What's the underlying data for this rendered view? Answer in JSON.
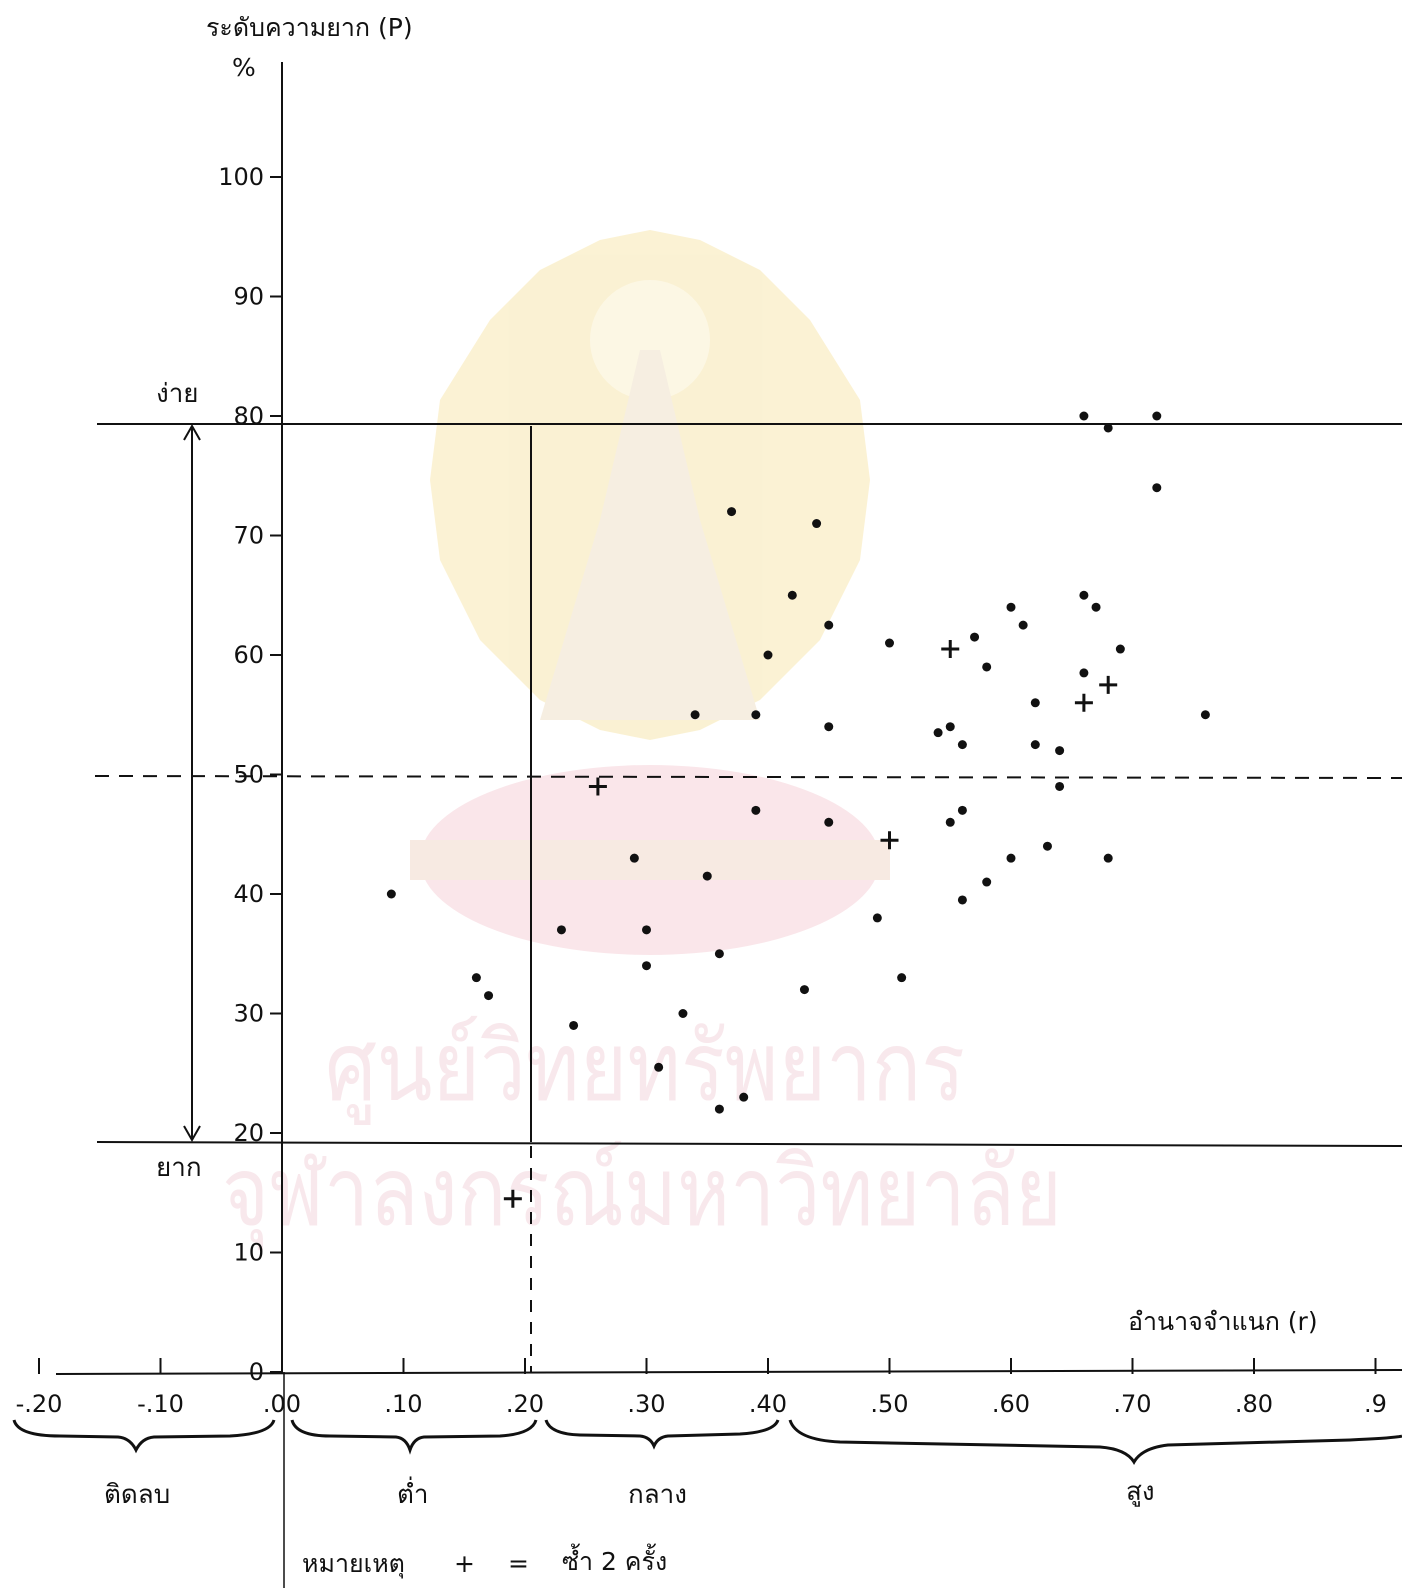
{
  "chart_data": {
    "type": "scatter",
    "ylabel": "ระดับความยาก (P)",
    "y_unit": "%",
    "xlabel": "อำนาจจำแนก (r)",
    "y_ticks": [
      "0",
      "10",
      "20",
      "30",
      "40",
      "50",
      "60",
      "70",
      "80",
      "90",
      "100"
    ],
    "y_tick_values": [
      0,
      10,
      20,
      30,
      40,
      50,
      60,
      70,
      80,
      90,
      100
    ],
    "x_ticks": [
      "-.20",
      "-.10",
      ".00",
      ".10",
      ".20",
      ".30",
      ".40",
      ".50",
      ".60",
      ".70",
      ".80",
      ".9"
    ],
    "x_tick_values": [
      -0.2,
      -0.1,
      0.0,
      0.1,
      0.2,
      0.3,
      0.4,
      0.5,
      0.6,
      0.7,
      0.8,
      0.9
    ],
    "xlim": [
      -0.22,
      0.91
    ],
    "ylim": [
      0,
      112
    ],
    "difficulty_labels": {
      "easy": "ง่าย",
      "hard": "ยาก"
    },
    "reference_lines": {
      "p_upper": 80,
      "p_lower": 20,
      "p_mid": 50,
      "r_boundary": 0.2
    },
    "discrimination_groups": [
      {
        "label": "ติดลบ",
        "range": [
          -0.22,
          0.0
        ]
      },
      {
        "label": "ต่ำ",
        "range": [
          0.0,
          0.2
        ]
      },
      {
        "label": "กลาง",
        "range": [
          0.2,
          0.4
        ]
      },
      {
        "label": "สูง",
        "range": [
          0.4,
          0.91
        ]
      }
    ],
    "note": {
      "label": "หมายเหตุ",
      "symbol": "+",
      "equals": "=",
      "text": "ซ้ำ 2 ครั้ง"
    },
    "points": [
      {
        "x": 0.09,
        "y": 40
      },
      {
        "x": 0.16,
        "y": 33
      },
      {
        "x": 0.17,
        "y": 31.5
      },
      {
        "x": 0.24,
        "y": 29
      },
      {
        "x": 0.23,
        "y": 37
      },
      {
        "x": 0.29,
        "y": 43
      },
      {
        "x": 0.3,
        "y": 37
      },
      {
        "x": 0.3,
        "y": 34
      },
      {
        "x": 0.31,
        "y": 25.5
      },
      {
        "x": 0.33,
        "y": 30
      },
      {
        "x": 0.34,
        "y": 55
      },
      {
        "x": 0.35,
        "y": 41.5
      },
      {
        "x": 0.36,
        "y": 35
      },
      {
        "x": 0.36,
        "y": 22
      },
      {
        "x": 0.37,
        "y": 72
      },
      {
        "x": 0.38,
        "y": 23
      },
      {
        "x": 0.39,
        "y": 55
      },
      {
        "x": 0.39,
        "y": 47
      },
      {
        "x": 0.4,
        "y": 60
      },
      {
        "x": 0.42,
        "y": 65
      },
      {
        "x": 0.43,
        "y": 32
      },
      {
        "x": 0.44,
        "y": 71
      },
      {
        "x": 0.45,
        "y": 62.5
      },
      {
        "x": 0.45,
        "y": 54
      },
      {
        "x": 0.45,
        "y": 46
      },
      {
        "x": 0.49,
        "y": 38
      },
      {
        "x": 0.5,
        "y": 61
      },
      {
        "x": 0.51,
        "y": 33
      },
      {
        "x": 0.54,
        "y": 53.5
      },
      {
        "x": 0.55,
        "y": 54
      },
      {
        "x": 0.55,
        "y": 46
      },
      {
        "x": 0.56,
        "y": 52.5
      },
      {
        "x": 0.56,
        "y": 47
      },
      {
        "x": 0.56,
        "y": 39.5
      },
      {
        "x": 0.57,
        "y": 61.5
      },
      {
        "x": 0.58,
        "y": 59
      },
      {
        "x": 0.58,
        "y": 41
      },
      {
        "x": 0.6,
        "y": 64
      },
      {
        "x": 0.6,
        "y": 43
      },
      {
        "x": 0.61,
        "y": 62.5
      },
      {
        "x": 0.62,
        "y": 52.5
      },
      {
        "x": 0.62,
        "y": 56
      },
      {
        "x": 0.63,
        "y": 44
      },
      {
        "x": 0.64,
        "y": 52
      },
      {
        "x": 0.64,
        "y": 49
      },
      {
        "x": 0.66,
        "y": 80
      },
      {
        "x": 0.66,
        "y": 65
      },
      {
        "x": 0.66,
        "y": 58.5
      },
      {
        "x": 0.67,
        "y": 64
      },
      {
        "x": 0.68,
        "y": 79
      },
      {
        "x": 0.68,
        "y": 43
      },
      {
        "x": 0.69,
        "y": 60.5
      },
      {
        "x": 0.72,
        "y": 80
      },
      {
        "x": 0.72,
        "y": 74
      },
      {
        "x": 0.76,
        "y": 55
      }
    ],
    "repeated_points": [
      {
        "x": 0.19,
        "y": 14.5
      },
      {
        "x": 0.26,
        "y": 49
      },
      {
        "x": 0.5,
        "y": 44.5
      },
      {
        "x": 0.55,
        "y": 60.5
      },
      {
        "x": 0.66,
        "y": 56
      },
      {
        "x": 0.68,
        "y": 57.5
      }
    ]
  },
  "watermark": {
    "line1": "ศูนย์วิทยทรัพยากร",
    "line2": "จุฬาลงกรณ์มหาวิทยาลัย"
  }
}
